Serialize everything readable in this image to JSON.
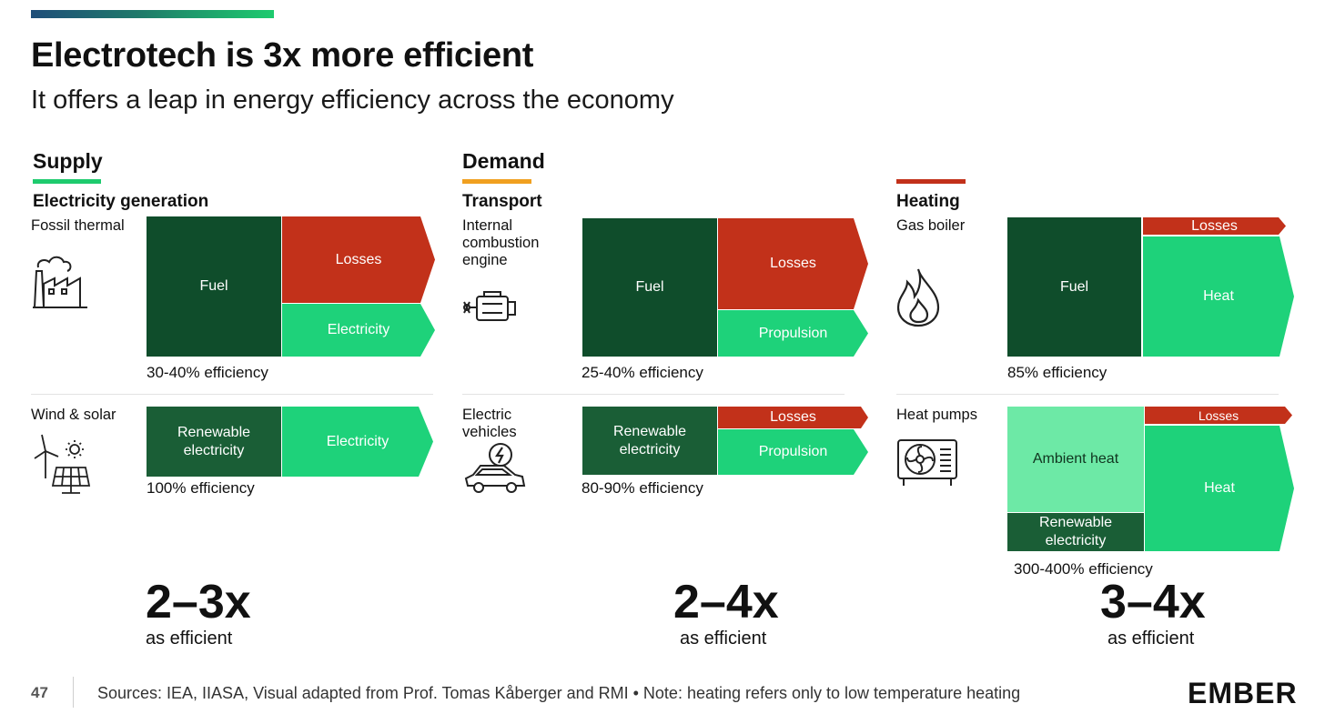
{
  "title": "Electrotech is 3x more efficient",
  "subtitle": "It offers a leap in energy efficiency across the economy",
  "colors": {
    "fuel": "#0f4d2b",
    "renewable": "#1a5e36",
    "useful": "#1ed27a",
    "ambient": "#6de9a6",
    "losses": "#c2311a",
    "supply_bar": "#1ecb6e",
    "demand_bar": "#f0a020",
    "heating_bar": "#c2311a"
  },
  "supply": {
    "label": "Supply",
    "category": "Electricity generation",
    "fossil": {
      "tech": "Fossil thermal",
      "icon": "factory-icon",
      "fuel": "Fuel",
      "losses": "Losses",
      "output": "Electricity",
      "efficiency": "30-40% efficiency"
    },
    "renewable": {
      "tech": "Wind & solar",
      "icon": "wind-solar-icon",
      "input": "Renewable electricity",
      "output": "Electricity",
      "efficiency": "100% efficiency"
    },
    "multiplier": "2–3x",
    "multiplier_label": "as efficient"
  },
  "demand": {
    "label": "Demand",
    "category": "Transport",
    "ice": {
      "tech": "Internal combustion engine",
      "icon": "engine-icon",
      "fuel": "Fuel",
      "losses": "Losses",
      "output": "Propulsion",
      "efficiency": "25-40% efficiency"
    },
    "ev": {
      "tech": "Electric vehicles",
      "icon": "electric-car-icon",
      "input": "Renewable electricity",
      "losses": "Losses",
      "output": "Propulsion",
      "efficiency": "80-90% efficiency"
    },
    "multiplier": "2–4x",
    "multiplier_label": "as efficient"
  },
  "heating": {
    "category": "Heating",
    "boiler": {
      "tech": "Gas boiler",
      "icon": "flame-icon",
      "fuel": "Fuel",
      "losses": "Losses",
      "output": "Heat",
      "efficiency": "85% efficiency"
    },
    "heatpump": {
      "tech": "Heat pumps",
      "icon": "heat-pump-icon",
      "ambient": "Ambient heat",
      "input": "Renewable electricity",
      "losses": "Losses",
      "output": "Heat",
      "efficiency": "300-400% efficiency"
    },
    "multiplier": "3–4x",
    "multiplier_label": "as efficient"
  },
  "footer": {
    "page": "47",
    "sources": "Sources: IEA, IIASA, Visual adapted from Prof. Tomas Kåberger and RMI • Note: heating refers only to low temperature heating",
    "logo": "EMBER"
  }
}
